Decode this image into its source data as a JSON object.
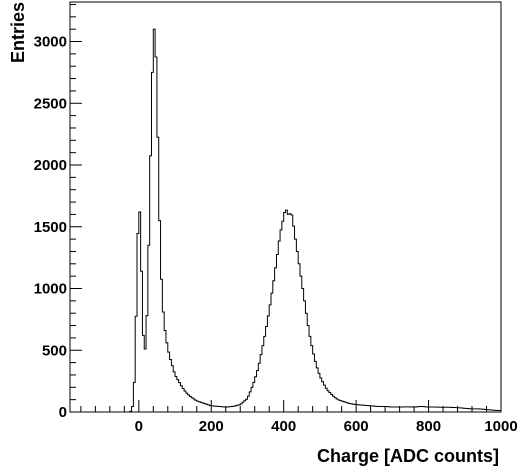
{
  "chart_data": {
    "type": "histogram",
    "title": "",
    "xlabel": "Charge [ADC counts]",
    "ylabel": "Entries",
    "xlim": [
      -190,
      1000
    ],
    "ylim": [
      0,
      3320
    ],
    "x_ticks": [
      0,
      200,
      400,
      600,
      800,
      1000
    ],
    "y_ticks": [
      0,
      500,
      1000,
      1500,
      2000,
      2500,
      3000
    ],
    "bin_width": 5,
    "grid": false,
    "series": [
      {
        "points": [
          [
            -25,
            0
          ],
          [
            -20,
            10
          ],
          [
            -15,
            80
          ],
          [
            -10,
            400
          ],
          [
            -5,
            1150
          ],
          [
            0,
            1740
          ],
          [
            5,
            1500
          ],
          [
            10,
            780
          ],
          [
            15,
            460
          ],
          [
            20,
            560
          ],
          [
            25,
            1000
          ],
          [
            30,
            1700
          ],
          [
            35,
            2450
          ],
          [
            40,
            3050
          ],
          [
            45,
            3150
          ],
          [
            50,
            2600
          ],
          [
            55,
            1850
          ],
          [
            60,
            1250
          ],
          [
            65,
            900
          ],
          [
            70,
            720
          ],
          [
            75,
            600
          ],
          [
            80,
            520
          ],
          [
            85,
            450
          ],
          [
            90,
            400
          ],
          [
            95,
            350
          ],
          [
            100,
            300
          ],
          [
            110,
            250
          ],
          [
            120,
            200
          ],
          [
            130,
            160
          ],
          [
            140,
            130
          ],
          [
            150,
            110
          ],
          [
            160,
            90
          ],
          [
            170,
            80
          ],
          [
            180,
            70
          ],
          [
            190,
            60
          ],
          [
            200,
            50
          ],
          [
            220,
            45
          ],
          [
            240,
            40
          ],
          [
            260,
            45
          ],
          [
            280,
            60
          ],
          [
            300,
            110
          ],
          [
            310,
            180
          ],
          [
            320,
            260
          ],
          [
            330,
            360
          ],
          [
            340,
            500
          ],
          [
            350,
            650
          ],
          [
            360,
            820
          ],
          [
            370,
            1010
          ],
          [
            380,
            1220
          ],
          [
            390,
            1440
          ],
          [
            400,
            1580
          ],
          [
            405,
            1650
          ],
          [
            410,
            1620
          ],
          [
            415,
            1580
          ],
          [
            420,
            1630
          ],
          [
            425,
            1560
          ],
          [
            430,
            1450
          ],
          [
            440,
            1250
          ],
          [
            450,
            1050
          ],
          [
            460,
            850
          ],
          [
            470,
            650
          ],
          [
            480,
            500
          ],
          [
            490,
            380
          ],
          [
            500,
            290
          ],
          [
            510,
            230
          ],
          [
            520,
            180
          ],
          [
            530,
            150
          ],
          [
            540,
            120
          ],
          [
            550,
            100
          ],
          [
            560,
            90
          ],
          [
            580,
            70
          ],
          [
            600,
            60
          ],
          [
            620,
            55
          ],
          [
            640,
            50
          ],
          [
            660,
            45
          ],
          [
            680,
            45
          ],
          [
            700,
            40
          ],
          [
            720,
            40
          ],
          [
            740,
            42
          ],
          [
            760,
            40
          ],
          [
            780,
            45
          ],
          [
            800,
            40
          ],
          [
            820,
            40
          ],
          [
            840,
            38
          ],
          [
            860,
            38
          ],
          [
            880,
            35
          ],
          [
            900,
            30
          ],
          [
            920,
            25
          ],
          [
            940,
            25
          ],
          [
            960,
            20
          ],
          [
            980,
            15
          ],
          [
            995,
            12
          ]
        ]
      }
    ]
  }
}
